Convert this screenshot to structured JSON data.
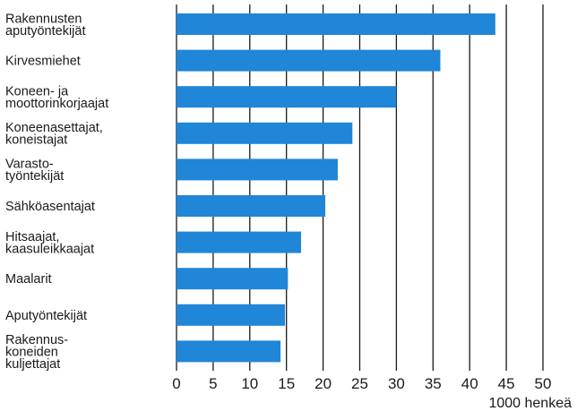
{
  "chart_data": {
    "type": "bar",
    "orientation": "horizontal",
    "categories": [
      "Rakennusten\naputyöntekijät",
      "Kirvesmiehet",
      "Koneen- ja\nmoottorinkorjaajat",
      "Koneenasettajat,\nkoneistajat",
      "Varasto-\ntyöntekijät",
      "Sähköasentajat",
      "Hitsaajat,\nkaasuleikkaajat",
      "Maalarit",
      "Aputyöntekijät",
      "Rakennus-\nkoneiden\nkuljettajat"
    ],
    "values": [
      43.5,
      36,
      30,
      24,
      22,
      20.3,
      17,
      15.2,
      14.8,
      14.2
    ],
    "xlim": [
      0,
      50
    ],
    "xticks": [
      "0",
      "5",
      "10",
      "15",
      "20",
      "25",
      "30",
      "35",
      "40",
      "45",
      "50"
    ],
    "xlabel": "1000 henkeä",
    "grid": "vertical",
    "bar_color": "#1f86d8"
  }
}
